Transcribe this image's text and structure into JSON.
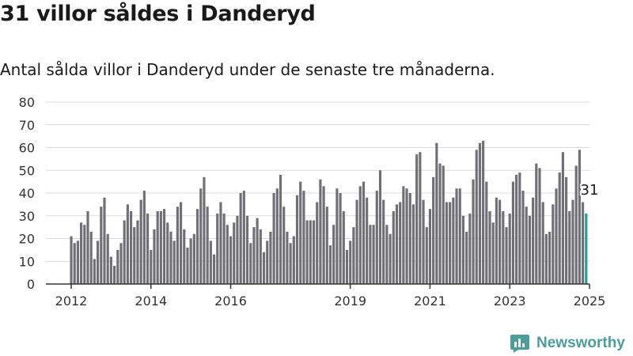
{
  "header": {
    "title": "31 villor såldes i Danderyd",
    "subtitle": "Antal sålda villor i Danderyd under de senaste tre månaderna."
  },
  "brand": {
    "name": "Newsworthy",
    "icon": "newsworthy-logo-icon",
    "color": "#4d9d98"
  },
  "colors": {
    "bar": "#6f6f75",
    "highlight": "#2a9d93",
    "grid": "#dcdcdc",
    "axis": "#333333"
  },
  "chart_data": {
    "type": "bar",
    "title": "31 villor såldes i Danderyd",
    "subtitle": "Antal sålda villor i Danderyd under de senaste tre månaderna.",
    "ylim": [
      0,
      80
    ],
    "yticks": [
      0,
      10,
      20,
      30,
      40,
      50,
      60,
      70,
      80
    ],
    "grid": true,
    "x_start": "2012-01",
    "x_end": "2025-01",
    "xtick_labels": [
      {
        "label": "2012",
        "at": "2012-01"
      },
      {
        "label": "2014",
        "at": "2014-01"
      },
      {
        "label": "2016",
        "at": "2016-01"
      },
      {
        "label": "2019",
        "at": "2019-01"
      },
      {
        "label": "2021",
        "at": "2021-01"
      },
      {
        "label": "2023",
        "at": "2023-01"
      },
      {
        "label": "2025",
        "at": "2025-01"
      }
    ],
    "values": [
      21,
      18,
      19,
      27,
      26,
      32,
      23,
      11,
      19,
      34,
      38,
      22,
      12,
      8,
      15,
      18,
      28,
      35,
      32,
      25,
      28,
      37,
      41,
      31,
      15,
      24,
      32,
      32,
      33,
      27,
      23,
      19,
      34,
      36,
      24,
      16,
      20,
      22,
      33,
      42,
      47,
      34,
      19,
      13,
      31,
      36,
      31,
      26,
      21,
      27,
      30,
      40,
      41,
      30,
      18,
      25,
      29,
      24,
      14,
      19,
      23,
      40,
      42,
      48,
      34,
      23,
      18,
      21,
      39,
      45,
      41,
      28,
      28,
      28,
      36,
      46,
      43,
      34,
      17,
      26,
      42,
      40,
      32,
      15,
      19,
      25,
      37,
      43,
      45,
      38,
      26,
      26,
      41,
      50,
      37,
      26,
      22,
      32,
      35,
      36,
      43,
      42,
      40,
      35,
      57,
      58,
      37,
      25,
      33,
      47,
      62,
      53,
      52,
      36,
      36,
      38,
      42,
      42,
      30,
      23,
      31,
      46,
      59,
      62,
      63,
      45,
      32,
      27,
      38,
      37,
      32,
      25,
      31,
      45,
      48,
      49,
      41,
      34,
      30,
      38,
      53,
      51,
      36,
      22,
      23,
      35,
      42,
      49,
      58,
      47,
      32,
      37,
      52,
      59,
      36,
      31
    ],
    "highlight": {
      "label": "31",
      "value": 31,
      "date": "2025-01"
    }
  }
}
